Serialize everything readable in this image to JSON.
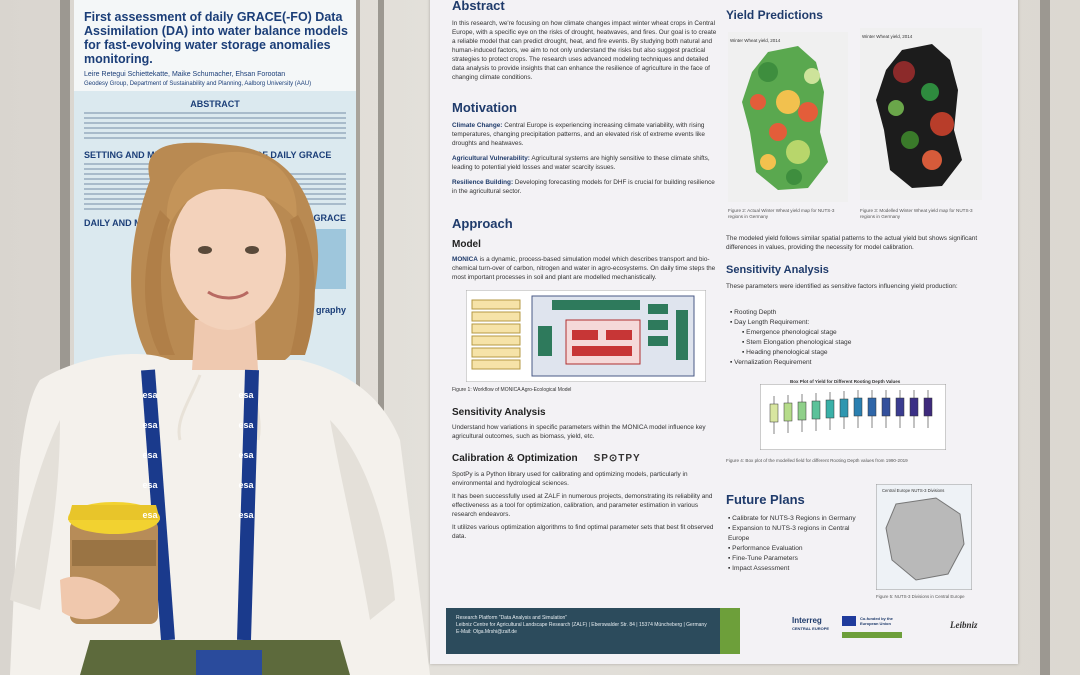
{
  "left_poster": {
    "title": "First assessment of daily GRACE(-FO) Data Assimilation (DA) into water balance models for fast-evolving water storage anomalies monitoring.",
    "authors": "Leire Retegui Schiettekatte, Maike Schumacher, Ehsan Forootan",
    "affiliation": "Geodesy Group, Department of Sustainability and Planning, Aalborg University (AAU)",
    "abstract_heading": "ABSTRACT",
    "setting_heading": "SETTING AND METHOD",
    "impact_heading": "IMPACT OF DAILY GRACE DA O",
    "daily_heading": "DAILY AND M GRACE SIGNA",
    "daily_grace_heading": "DAILY GRACE",
    "graphy": "graphy"
  },
  "poster": {
    "abstract_heading": "Abstract",
    "abstract_text": "In this research, we're focusing on how climate changes impact winter wheat crops in Central Europe, with a specific eye on the risks of drought, heatwaves, and fires. Our goal is to create a reliable model that can predict drought, heat, and fire events. By studying both natural and human-induced factors, we aim to not only understand the risks but also suggest practical strategies to protect crops. The research uses advanced modeling techniques and detailed data analysis to provide insights that can enhance the resilience of agriculture in the face of changing climate conditions.",
    "motivation_heading": "Motivation",
    "motivation_1_label": "Climate Change:",
    "motivation_1_text": " Central Europe is experiencing increasing climate variability, with rising temperatures, changing precipitation patterns, and an elevated risk of extreme events like droughts and heatwaves.",
    "motivation_2_label": "Agricultural Vulnerability:",
    "motivation_2_text": " Agricultural systems are highly sensitive to these climate shifts, leading to potential yield losses and water scarcity issues.",
    "motivation_3_label": "Resilience Building:",
    "motivation_3_text": " Developing forecasting models for DHF is crucial for building resilience in the agricultural sector.",
    "approach_heading": "Approach",
    "model_heading": "Model",
    "model_label": "MONICA",
    "model_text": " is a dynamic, process-based simulation model which describes transport and bio-chemical turn-over of carbon, nitrogen and water in agro-ecosystems. On daily time steps the most important processes in soil and plant are modelled mechanistically.",
    "fig1_caption": "Figure 1: Workflow of MONICA Agro-Ecological Model",
    "sens_left_heading": "Sensitivity Analysis",
    "sens_left_text": "Understand how variations in specific parameters within the MONICA model influence key agricultural outcomes, such as biomass, yield, etc.",
    "calib_heading": "Calibration & Optimization",
    "spotpy_logo": "SP⊙TPY",
    "calib_p1": "SpotPy is a Python library used for calibrating and optimizing models, particularly in environmental and hydrological sciences.",
    "calib_p2": "It has been successfully used at ZALF in numerous projects, demonstrating its reliability and effectiveness as a tool for optimization, calibration, and parameter estimation in various research endeavors.",
    "calib_p3": "It utilizes various optimization algorithms to find optimal parameter sets that best fit observed data.",
    "yield_heading": "Yield Predictions",
    "map1_title": "Winter Wheat yield, 2014",
    "map2_title": "Winter Wheat yield, 2014",
    "fig2_caption": "Figure 2: Actual Winter Wheat yield map for NUTS-3 regions in Germany",
    "fig3_caption": "Figure 3: Modelled Winter Wheat yield map for NUTS-3 regions in Germany",
    "yield_text": "The modeled yield follows similar spatial patterns to the actual yield but shows significant differences in values, providing the necessity for model calibration.",
    "sens_right_heading": "Sensitivity Analysis",
    "sens_right_text": "These parameters were identified as sensitive factors influencing yield production:",
    "bullets": [
      "Rooting Depth",
      "Day Length Requirement:",
      "Emergence phenological stage",
      "Stem Elongation phenological stage",
      "Heading phenological stage",
      "Vernalization Requirement"
    ],
    "boxplot_title": "Box Plot of Yield for Different Rooting Depth Values",
    "fig4_caption": "Figure 4: Box plot of the modelled field for different Rooting Depth values from 1990-2019",
    "future_heading": "Future Plans",
    "future_items": [
      "Calibrate for NUTS-3 Regions in Germany",
      "Expansion to NUTS-3 regions in Central Europe",
      "Performance Evaluation",
      "Fine-Tune Parameters",
      "Impact Assessment"
    ],
    "map3_title": "Central Europe NUTS-3 Divisions",
    "fig5_caption": "Figure 5: NUTS-3 Divisions in Central Europe",
    "footer_l1": "Research Platform \"Data Analysis and Simulation\"",
    "footer_l2": "Leibniz Centre for Agricultural Landscape Research (ZALF) | Eberswalder Str. 84 | 15374 Müncheberg | Germany",
    "footer_l3": "E-Mail: Olga.Mrshi@zalf.de",
    "interreg": "Interreg",
    "interreg_sub": "CENTRAL EUROPE",
    "eu": "Co-funded by the European Union",
    "leibniz": "Leibniz"
  },
  "lanyard_text": "esa",
  "colors": {
    "navy": "#1f3b6b",
    "lanyard": "#1a3a8c",
    "cup_lid": "#f2d230"
  }
}
